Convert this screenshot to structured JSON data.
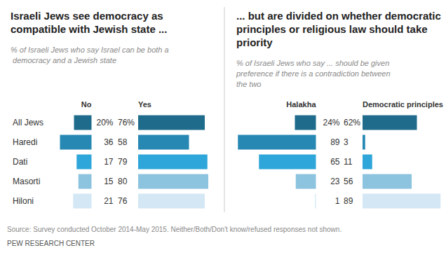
{
  "chart_data": [
    {
      "type": "bar",
      "orientation": "horizontal",
      "title": "Israeli Jews see democracy as compatible with Jewish state ...",
      "subtitle": "% of Israeli Jews who say Israel can be both a democracy and a Jewish state",
      "categories": [
        "All Jews",
        "Haredi",
        "Dati",
        "Masorti",
        "Hiloni"
      ],
      "colors": [
        "#1f6b8b",
        "#2788b4",
        "#2fa6d9",
        "#8cc3de",
        "#d3e7f4"
      ],
      "xlim": [
        0,
        90
      ],
      "data_labels": true,
      "tick_labels": "y",
      "series": [
        {
          "name": "No",
          "values": [
            20,
            36,
            17,
            15,
            21
          ],
          "value_labels": [
            "20%",
            "36",
            "17",
            "15",
            "21"
          ]
        },
        {
          "name": "Yes",
          "values": [
            76,
            58,
            79,
            80,
            76
          ],
          "value_labels": [
            "76%",
            "58",
            "79",
            "80",
            "76"
          ]
        }
      ]
    },
    {
      "type": "bar",
      "orientation": "horizontal",
      "title": "... but are divided on whether democratic principles or religious law should take priority",
      "subtitle": "% of Israeli Jews who say ... should be given preference if there is a contradiction between the two",
      "categories": [
        "All Jews",
        "Haredi",
        "Dati",
        "Masorti",
        "Hiloni"
      ],
      "colors": [
        "#1f6b8b",
        "#2788b4",
        "#2fa6d9",
        "#8cc3de",
        "#d3e7f4"
      ],
      "xlim": [
        0,
        90
      ],
      "data_labels": true,
      "tick_labels": false,
      "series": [
        {
          "name": "Halakha",
          "values": [
            24,
            89,
            65,
            23,
            1
          ],
          "value_labels": [
            "24%",
            "89",
            "65",
            "23",
            "1"
          ]
        },
        {
          "name": "Democratic principles",
          "values": [
            62,
            3,
            11,
            56,
            89
          ],
          "value_labels": [
            "62%",
            "3",
            "11",
            "56",
            "89"
          ]
        }
      ]
    }
  ],
  "source": "Source: Survey conducted October 2014-May 2015. Neither/Both/Don't know/refused responses not shown.",
  "credit": "PEW RESEARCH CENTER"
}
